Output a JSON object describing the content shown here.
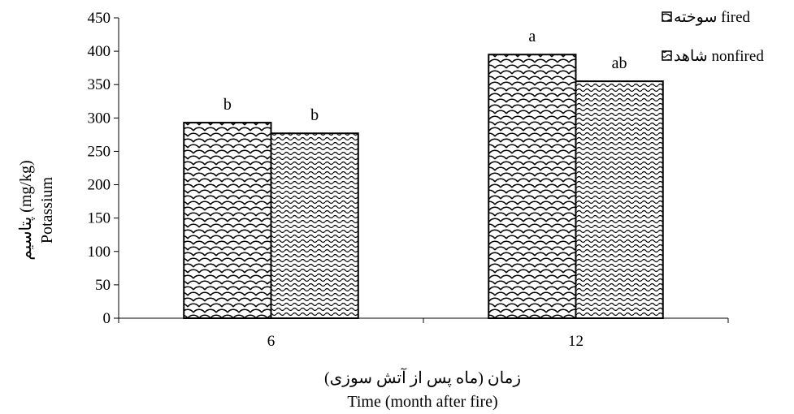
{
  "chart_data": {
    "type": "bar",
    "categories": [
      "6",
      "12"
    ],
    "series": [
      {
        "name": "سوخته fired",
        "values": [
          293,
          395
        ],
        "labels": [
          "b",
          "a"
        ],
        "pattern": "scale"
      },
      {
        "name": "شاهد nonfired",
        "values": [
          277,
          355
        ],
        "labels": [
          "b",
          "ab"
        ],
        "pattern": "wave"
      }
    ],
    "ylabel_fa": "پتاسیم (mg/kg)",
    "ylabel_en": "Potassium",
    "xlabel_fa": "زمان (ماه پس از آتش سوزی)",
    "xlabel_en": "Time (month after fire)",
    "ylim": [
      0,
      450
    ],
    "yticks": [
      0,
      50,
      100,
      150,
      200,
      250,
      300,
      350,
      400,
      450
    ],
    "grid": false,
    "legend_position": "top-right",
    "colors": {
      "bar_stroke": "#000000",
      "pattern": "#000000",
      "background": "#ffffff"
    }
  }
}
